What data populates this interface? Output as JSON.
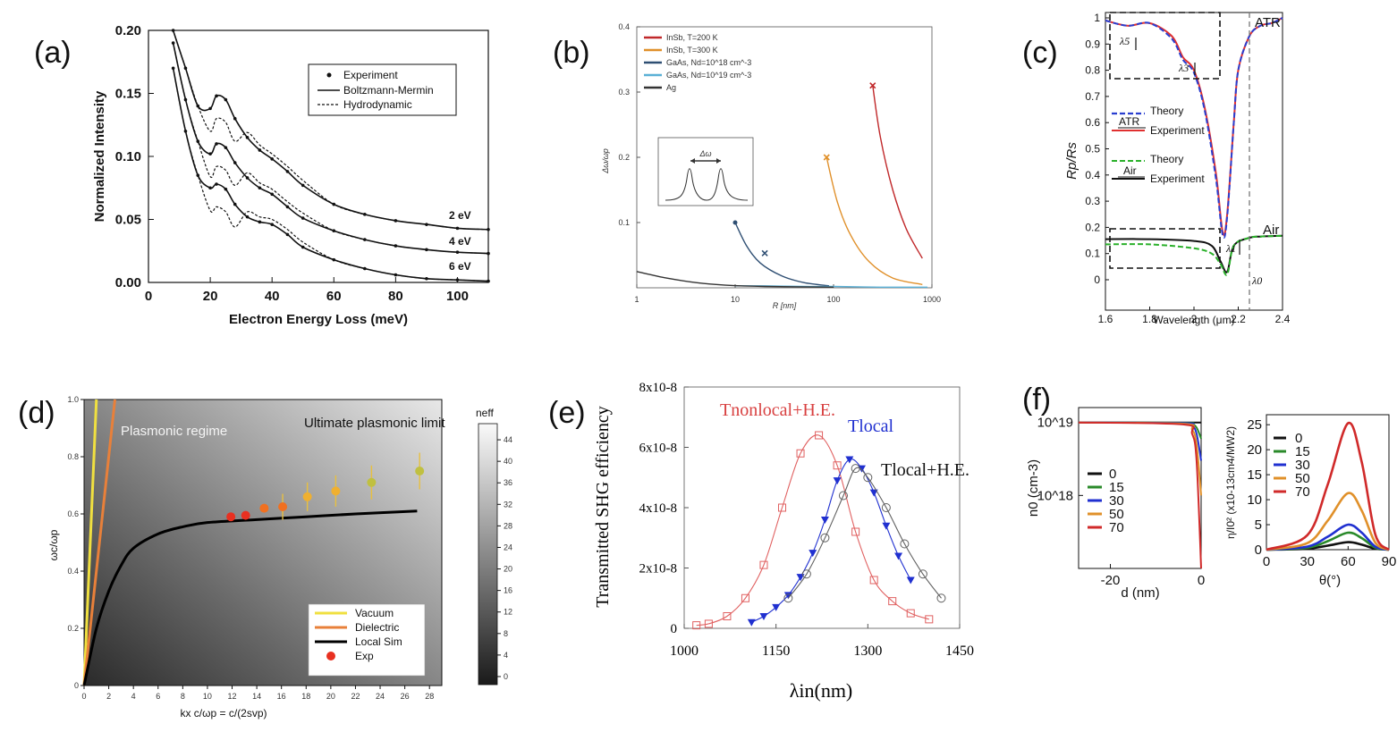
{
  "chart_data": [
    {
      "panel": "(a)",
      "type": "line",
      "xlabel": "Electron Energy Loss (meV)",
      "ylabel": "Normalized Intensity",
      "xlim": [
        0,
        110
      ],
      "ylim": [
        0,
        0.2
      ],
      "xticks": [
        "0",
        "20",
        "40",
        "60",
        "80",
        "100"
      ],
      "yticks": [
        "0.00",
        "0.05",
        "0.10",
        "0.15",
        "0.20"
      ],
      "legend": [
        "Experiment",
        "Boltzmann-Mermin",
        "Hydrodynamic"
      ],
      "annotations": [
        "2 eV",
        "4 eV",
        "6 eV"
      ],
      "series": [
        {
          "name": "2 eV",
          "x": [
            8,
            12,
            16,
            20,
            22,
            25,
            28,
            32,
            36,
            40,
            45,
            50,
            60,
            70,
            80,
            90,
            100,
            110
          ],
          "y": [
            0.2,
            0.17,
            0.14,
            0.138,
            0.148,
            0.145,
            0.13,
            0.115,
            0.105,
            0.098,
            0.088,
            0.077,
            0.062,
            0.054,
            0.049,
            0.046,
            0.043,
            0.042
          ]
        },
        {
          "name": "4 eV",
          "x": [
            8,
            12,
            16,
            20,
            22,
            25,
            28,
            32,
            36,
            40,
            45,
            50,
            60,
            70,
            80,
            90,
            100,
            110
          ],
          "y": [
            0.19,
            0.145,
            0.112,
            0.102,
            0.11,
            0.107,
            0.095,
            0.083,
            0.075,
            0.07,
            0.06,
            0.051,
            0.041,
            0.034,
            0.029,
            0.026,
            0.024,
            0.023
          ]
        },
        {
          "name": "6 eV",
          "x": [
            8,
            12,
            16,
            20,
            22,
            25,
            28,
            32,
            36,
            40,
            45,
            50,
            60,
            70,
            80,
            90,
            100,
            110
          ],
          "y": [
            0.17,
            0.12,
            0.085,
            0.075,
            0.078,
            0.074,
            0.062,
            0.052,
            0.048,
            0.046,
            0.038,
            0.028,
            0.018,
            0.011,
            0.006,
            0.003,
            0.002,
            0.001
          ]
        }
      ]
    },
    {
      "panel": "(b)",
      "type": "line",
      "xlabel": "R [nm]",
      "ylabel": "Δω/ωp",
      "xscale": "log",
      "xlim": [
        1,
        1000
      ],
      "ylim": [
        0,
        0.4
      ],
      "xticks": [
        "1",
        "10",
        "100",
        "1000"
      ],
      "yticks": [
        "0.1",
        "0.2",
        "0.3",
        "0.4"
      ],
      "inset_label": "Δω",
      "series": [
        {
          "name": "InSb, T=200 K",
          "color": "#c0282a",
          "x": [
            250,
            300,
            400,
            550,
            800
          ],
          "y": [
            0.31,
            0.23,
            0.15,
            0.09,
            0.045
          ]
        },
        {
          "name": "InSb, T=300 K",
          "color": "#e0902a",
          "x": [
            85,
            110,
            150,
            230,
            400,
            800
          ],
          "y": [
            0.2,
            0.13,
            0.08,
            0.04,
            0.015,
            0.005
          ]
        },
        {
          "name": "GaAs, Nd=10^18 cm^-3",
          "color": "#2f4f73",
          "x": [
            10,
            13,
            18,
            30,
            50,
            90
          ],
          "y": [
            0.1,
            0.065,
            0.038,
            0.018,
            0.008,
            0.003
          ]
        },
        {
          "name": "GaAs, Nd=10^19 cm^-3",
          "color": "#5ab0d6",
          "x": [
            10,
            20,
            50,
            100,
            300,
            900
          ],
          "y": [
            0.003,
            0.003,
            0.002,
            0.002,
            0.001,
            0.001
          ]
        },
        {
          "name": "Ag",
          "color": "#333333",
          "x": [
            1,
            2,
            4,
            8,
            20,
            100
          ],
          "y": [
            0.025,
            0.015,
            0.008,
            0.004,
            0.002,
            0.001
          ]
        }
      ]
    },
    {
      "panel": "(c)",
      "type": "line",
      "xlabel": "Wavelength (μm)",
      "ylabel": "Rp/Rs",
      "xlim": [
        1.6,
        2.4
      ],
      "ylim": [
        0,
        1
      ],
      "xticks": [
        "1.6",
        "1.8",
        "2",
        "2.2",
        "2.4"
      ],
      "yticks": [
        "0",
        "0.1",
        "0.2",
        "0.3",
        "0.4",
        "0.5",
        "0.6",
        "0.7",
        "0.8",
        "0.9",
        "1"
      ],
      "annotations": [
        "ATR",
        "Air",
        "λ0",
        "λ5",
        "λ3",
        "λ1"
      ],
      "legend": [
        "ATR",
        "Theory",
        "Experiment",
        "Air",
        "Theory",
        "Experiment"
      ],
      "series": [
        {
          "name": "ATR Experiment",
          "color": "#e03030",
          "x": [
            1.6,
            1.7,
            1.8,
            1.9,
            1.95,
            2.0,
            2.05,
            2.1,
            2.13,
            2.15,
            2.18,
            2.2,
            2.25,
            2.3,
            2.35,
            2.4
          ],
          "y": [
            0.99,
            0.97,
            0.98,
            0.93,
            0.85,
            0.8,
            0.65,
            0.4,
            0.18,
            0.25,
            0.6,
            0.8,
            0.93,
            0.97,
            0.98,
            1.0
          ]
        },
        {
          "name": "ATR Theory",
          "color": "#2a3fd0",
          "x": [
            1.6,
            1.7,
            1.8,
            1.9,
            1.95,
            2.0,
            2.05,
            2.1,
            2.13,
            2.15,
            2.18,
            2.2,
            2.25,
            2.3,
            2.35,
            2.4
          ],
          "y": [
            0.99,
            0.97,
            0.98,
            0.92,
            0.84,
            0.79,
            0.64,
            0.38,
            0.17,
            0.24,
            0.6,
            0.8,
            0.93,
            0.97,
            0.98,
            1.0
          ]
        },
        {
          "name": "Air Experiment",
          "color": "#111111",
          "x": [
            1.6,
            1.8,
            2.0,
            2.08,
            2.12,
            2.15,
            2.18,
            2.25,
            2.3,
            2.4
          ],
          "y": [
            0.155,
            0.155,
            0.148,
            0.13,
            0.07,
            0.03,
            0.13,
            0.16,
            0.165,
            0.168
          ]
        },
        {
          "name": "Air Theory",
          "color": "#2ab02a",
          "x": [
            1.6,
            1.8,
            2.0,
            2.08,
            2.12,
            2.15,
            2.18,
            2.25,
            2.3,
            2.4
          ],
          "y": [
            0.135,
            0.135,
            0.12,
            0.1,
            0.06,
            0.02,
            0.13,
            0.16,
            0.165,
            0.168
          ]
        }
      ]
    },
    {
      "panel": "(d)",
      "type": "line",
      "xlabel": "kx c/ωp = c/(2svp)",
      "ylabel": "ωc/ωp",
      "colorbar_label": "neff",
      "colorbar_ticks": [
        "0",
        "4",
        "8",
        "12",
        "16",
        "20",
        "24",
        "28",
        "32",
        "36",
        "40",
        "44"
      ],
      "xlim": [
        0,
        29
      ],
      "ylim": [
        0,
        1
      ],
      "xticks": [
        "0",
        "2",
        "4",
        "6",
        "8",
        "10",
        "12",
        "14",
        "16",
        "18",
        "20",
        "22",
        "24",
        "26",
        "28"
      ],
      "yticks": [
        "0",
        "0.2",
        "0.4",
        "0.6",
        "0.8",
        "1.0"
      ],
      "annotations": [
        "Plasmonic regime",
        "Ultimate plasmonic limit"
      ],
      "legend": [
        "Vacuum",
        "Dielectric",
        "Local Sim",
        "Exp"
      ],
      "series": [
        {
          "name": "Vacuum",
          "color": "#f0e040",
          "x": [
            0,
            1.0
          ],
          "y": [
            0,
            1.0
          ]
        },
        {
          "name": "Dielectric",
          "color": "#e8803a",
          "x": [
            0,
            2.5
          ],
          "y": [
            0,
            1.0
          ]
        },
        {
          "name": "Local Sim",
          "color": "#000000",
          "x": [
            0,
            1,
            2,
            3,
            4,
            6,
            8,
            10,
            14,
            18,
            22,
            27
          ],
          "y": [
            0,
            0.2,
            0.33,
            0.42,
            0.48,
            0.53,
            0.555,
            0.57,
            0.58,
            0.59,
            0.6,
            0.61
          ]
        },
        {
          "name": "Exp",
          "x": [
            11.9,
            13.1,
            14.6,
            16.1,
            18.1,
            20.4,
            23.3,
            27.2
          ],
          "y": [
            0.59,
            0.595,
            0.62,
            0.625,
            0.66,
            0.68,
            0.71,
            0.75
          ]
        }
      ]
    },
    {
      "panel": "(e)",
      "type": "line",
      "xlabel": "λin(nm)",
      "ylabel": "Transmitted SHG efficiency",
      "xlim": [
        1000,
        1450
      ],
      "ylim": [
        0,
        8e-08
      ],
      "xticks": [
        "1000",
        "1150",
        "1300",
        "1450"
      ],
      "yticks": [
        "0",
        "2x10-8",
        "4x10-8",
        "6x10-8",
        "8x10-8"
      ],
      "annotations": [
        "Tnonlocal+H.E.",
        "Tlocal",
        "Tlocal+H.E."
      ],
      "series": [
        {
          "name": "Tnonlocal+H.E.",
          "color": "#e06060",
          "x": [
            1020,
            1040,
            1070,
            1100,
            1130,
            1160,
            1190,
            1220,
            1250,
            1280,
            1310,
            1340,
            1370,
            1400
          ],
          "y": [
            1e-09,
            1.5e-09,
            4e-09,
            1e-08,
            2.1e-08,
            4e-08,
            5.8e-08,
            6.4e-08,
            5.4e-08,
            3.2e-08,
            1.6e-08,
            9e-09,
            5e-09,
            3e-09
          ]
        },
        {
          "name": "Tlocal",
          "color": "#2030d0",
          "x": [
            1110,
            1130,
            1150,
            1170,
            1190,
            1210,
            1230,
            1250,
            1270,
            1290,
            1310,
            1330,
            1350,
            1370
          ],
          "y": [
            2e-09,
            4e-09,
            7e-09,
            1.1e-08,
            1.7e-08,
            2.5e-08,
            3.6e-08,
            4.9e-08,
            5.6e-08,
            5.3e-08,
            4.5e-08,
            3.4e-08,
            2.4e-08,
            1.6e-08
          ]
        },
        {
          "name": "Tlocal+H.E.",
          "color": "#606060",
          "x": [
            1170,
            1200,
            1230,
            1260,
            1280,
            1300,
            1330,
            1360,
            1390,
            1420
          ],
          "y": [
            1e-08,
            1.8e-08,
            3e-08,
            4.4e-08,
            5.3e-08,
            5e-08,
            4e-08,
            2.8e-08,
            1.8e-08,
            1e-08
          ]
        }
      ]
    },
    {
      "panel": "(f) left",
      "type": "line",
      "xlabel": "d (nm)",
      "ylabel": "n0 (cm-3)",
      "yscale": "log",
      "xlim": [
        -27,
        0
      ],
      "xticks": [
        "-20",
        "0"
      ],
      "yticks": [
        "10^18",
        "10^19"
      ],
      "legend": [
        "0",
        "15",
        "30",
        "50",
        "70"
      ],
      "series": [
        {
          "name": "0",
          "color": "#111111",
          "x": [
            -27,
            0
          ],
          "y": [
            1e+19,
            1e+19
          ]
        },
        {
          "name": "15",
          "color": "#2a8a2a",
          "x": [
            -27,
            -4,
            -2,
            -1,
            0
          ],
          "y": [
            1e+19,
            9.9e+18,
            9.5e+18,
            8.5e+18,
            6e+18
          ]
        },
        {
          "name": "30",
          "color": "#2030d0",
          "x": [
            -27,
            -4,
            -2,
            -1,
            0
          ],
          "y": [
            1e+19,
            9.8e+18,
            9e+18,
            7e+18,
            3e+18
          ]
        },
        {
          "name": "50",
          "color": "#e0902a",
          "x": [
            -27,
            -4,
            -2,
            -1,
            0
          ],
          "y": [
            1e+19,
            9.6e+18,
            8e+18,
            5e+18,
            1e+18
          ]
        },
        {
          "name": "70",
          "color": "#d02a2a",
          "x": [
            -27,
            -4,
            -2,
            -1,
            0
          ],
          "y": [
            1e+19,
            9.4e+18,
            7e+18,
            3e+18,
            1e+17
          ]
        }
      ]
    },
    {
      "panel": "(f) right",
      "type": "line",
      "xlabel": "θ(°)",
      "ylabel": "η/I0² (x10-13cm4/MW2)",
      "xlim": [
        0,
        90
      ],
      "ylim": [
        0,
        27
      ],
      "xticks": [
        "0",
        "30",
        "60",
        "90"
      ],
      "yticks": [
        "0",
        "5",
        "10",
        "15",
        "20",
        "25"
      ],
      "legend": [
        "0",
        "15",
        "30",
        "50",
        "70"
      ],
      "series": [
        {
          "name": "0",
          "color": "#111111",
          "x": [
            0,
            30,
            45,
            60,
            70,
            80,
            90
          ],
          "y": [
            0,
            0.2,
            0.8,
            1.5,
            1.0,
            0.2,
            0
          ]
        },
        {
          "name": "15",
          "color": "#2a8a2a",
          "x": [
            0,
            30,
            45,
            60,
            70,
            80,
            90
          ],
          "y": [
            0,
            0.4,
            1.7,
            3.4,
            2.3,
            0.4,
            0
          ]
        },
        {
          "name": "30",
          "color": "#2030d0",
          "x": [
            0,
            30,
            45,
            60,
            70,
            80,
            90
          ],
          "y": [
            0,
            0.6,
            2.6,
            5.0,
            3.4,
            0.6,
            0
          ]
        },
        {
          "name": "50",
          "color": "#e0902a",
          "x": [
            0,
            30,
            45,
            60,
            70,
            80,
            90
          ],
          "y": [
            0,
            1.3,
            5.8,
            11.3,
            7.8,
            1.4,
            0
          ]
        },
        {
          "name": "70",
          "color": "#d02a2a",
          "x": [
            0,
            30,
            45,
            60,
            70,
            80,
            90
          ],
          "y": [
            0,
            2.9,
            13.0,
            25.3,
            17.5,
            3.0,
            0
          ]
        }
      ]
    }
  ],
  "panel_labels": [
    "(a)",
    "(b)",
    "(c)",
    "(d)",
    "(e)",
    "(f)"
  ],
  "colors": {
    "red": "#d02a2a",
    "blue": "#2030d0",
    "green": "#2a8a2a",
    "orange": "#e0902a",
    "black": "#111111"
  }
}
